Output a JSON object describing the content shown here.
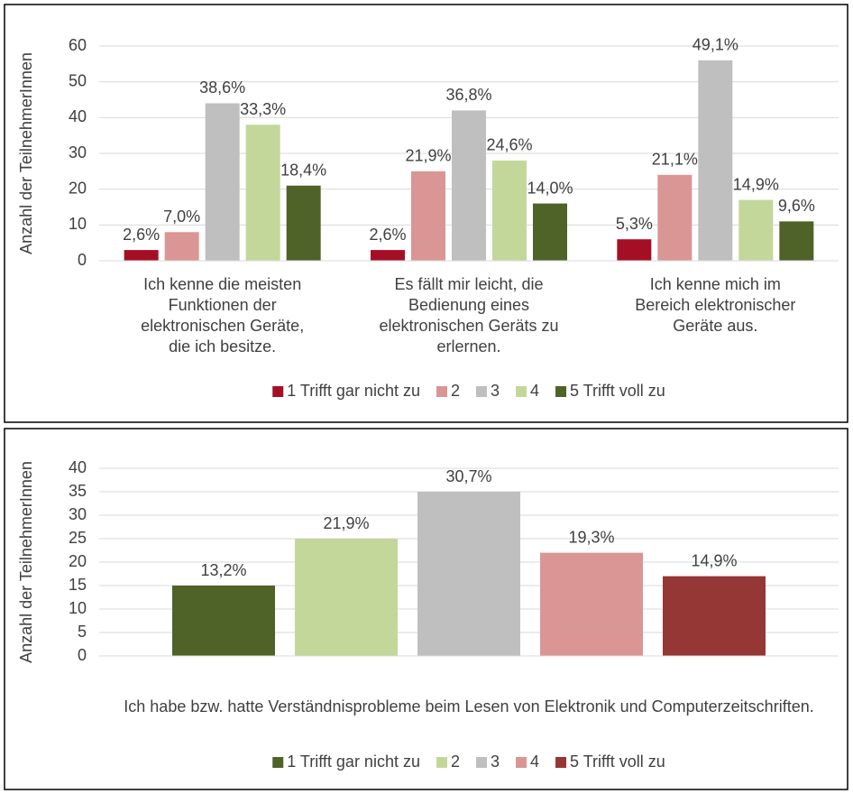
{
  "chart_data": [
    {
      "type": "bar",
      "y_label": "Anzahl der TeilnehmerInnen",
      "categories": [
        "Ich kenne die meisten Funktionen der elektronischen Geräte, die ich besitze.",
        "Es fällt mir leicht, die Bedienung eines elektronischen Geräts zu erlernen.",
        "Ich kenne mich im Bereich elektronischer Geräte aus."
      ],
      "series": [
        {
          "name": "1 Trifft gar nicht zu",
          "color": "#a50f26",
          "values": [
            3,
            3,
            6
          ],
          "value_labels": [
            "2,6%",
            "2,6%",
            "5,3%"
          ]
        },
        {
          "name": "2",
          "color": "#d99694",
          "values": [
            8,
            25,
            24
          ],
          "value_labels": [
            "7,0%",
            "21,9%",
            "21,1%"
          ]
        },
        {
          "name": "3",
          "color": "#bfbfbf",
          "values": [
            44,
            42,
            56
          ],
          "value_labels": [
            "38,6%",
            "36,8%",
            "49,1%"
          ]
        },
        {
          "name": "4",
          "color": "#c4d79b",
          "values": [
            38,
            28,
            17
          ],
          "value_labels": [
            "33,3%",
            "24,6%",
            "14,9%"
          ]
        },
        {
          "name": "5 Trifft voll zu",
          "color": "#4f6228",
          "values": [
            21,
            16,
            11
          ],
          "value_labels": [
            "18,4%",
            "14,0%",
            "9,6%"
          ]
        }
      ],
      "ylim": [
        0,
        60
      ],
      "yticks": [
        0,
        10,
        20,
        30,
        40,
        50,
        60
      ],
      "grid": true,
      "legend": "bottom"
    },
    {
      "type": "bar",
      "y_label": "Anzahl der TeilnehmerInnen",
      "categories": [
        "Ich habe bzw. hatte Verständnisprobleme beim Lesen von Elektronik und Computerzeitschriften."
      ],
      "series": [
        {
          "name": "1 Trifft gar nicht zu",
          "color": "#4f6228",
          "values": [
            15
          ],
          "value_labels": [
            "13,2%"
          ]
        },
        {
          "name": "2",
          "color": "#c4d79b",
          "values": [
            25
          ],
          "value_labels": [
            "21,9%"
          ]
        },
        {
          "name": "3",
          "color": "#bfbfbf",
          "values": [
            35
          ],
          "value_labels": [
            "30,7%"
          ]
        },
        {
          "name": "4",
          "color": "#d99694",
          "values": [
            22
          ],
          "value_labels": [
            "19,3%"
          ]
        },
        {
          "name": "5 Trifft voll zu",
          "color": "#953735",
          "values": [
            17
          ],
          "value_labels": [
            "14,9%"
          ]
        }
      ],
      "ylim": [
        0,
        40
      ],
      "yticks": [
        0,
        5,
        10,
        15,
        20,
        25,
        30,
        35,
        40
      ],
      "grid": true,
      "legend": "bottom"
    }
  ]
}
